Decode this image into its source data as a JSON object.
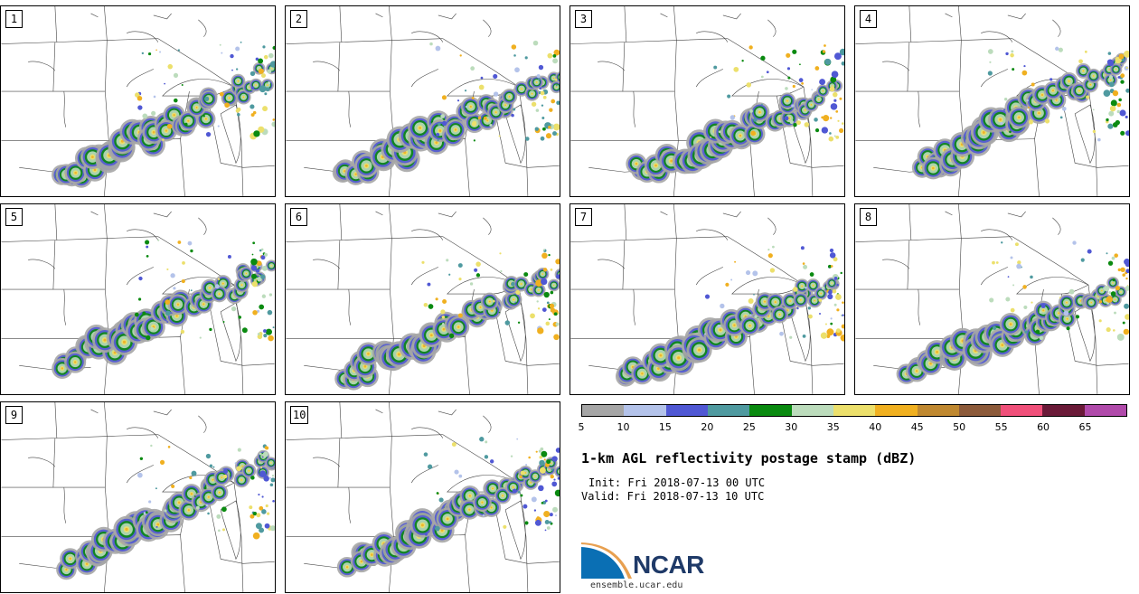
{
  "figure": {
    "title": "1-km AGL reflectivity postage stamp (dBZ)",
    "init": "Init: Fri 2018-07-13 00 UTC",
    "valid": "Valid: Fri 2018-07-13 10 UTC"
  },
  "colorbar": {
    "ticks": [
      "5",
      "10",
      "15",
      "20",
      "25",
      "30",
      "35",
      "40",
      "45",
      "50",
      "55",
      "60",
      "65"
    ],
    "colors": [
      "#a6a6a6",
      "#b4c3ea",
      "#5058d4",
      "#4f9aa0",
      "#0a8a10",
      "#bcdcbc",
      "#ece06c",
      "#f0b020",
      "#bf8830",
      "#8c5a3a",
      "#f0507a",
      "#6a1a38",
      "#b04aaa"
    ]
  },
  "members": [
    {
      "label": "1"
    },
    {
      "label": "2"
    },
    {
      "label": "3"
    },
    {
      "label": "4"
    },
    {
      "label": "5"
    },
    {
      "label": "6"
    },
    {
      "label": "7"
    },
    {
      "label": "8"
    },
    {
      "label": "9"
    },
    {
      "label": "10"
    }
  ],
  "logo": {
    "org": "NCAR",
    "site": "ensemble.ucar.edu"
  }
}
